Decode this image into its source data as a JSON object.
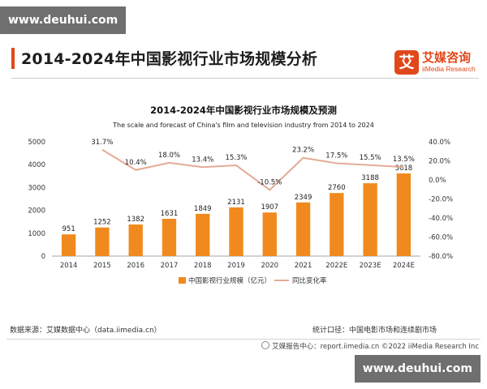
{
  "watermark": {
    "top": "www.deuhui.com",
    "bottom": "www.deuhui.com"
  },
  "header": {
    "title": "2014-2024年中国影视行业市场规模分析",
    "logo_mark": "艾",
    "logo_name": "艾媒咨询",
    "logo_sub": "iiMedia Research"
  },
  "colors": {
    "accent": "#e0481a",
    "bar": "#f08a1e",
    "line": "#e3ab95"
  },
  "chart_data": {
    "type": "bar",
    "title": "2014-2024年中国影视行业市场规模及预测",
    "subtitle": "The scale and forecast of China's film and television industry from 2014 to 2024",
    "categories": [
      "2014",
      "2015",
      "2016",
      "2017",
      "2018",
      "2019",
      "2020",
      "2021",
      "2022E",
      "2023E",
      "2024E"
    ],
    "series": [
      {
        "name": "中国影视行业规模（亿元）",
        "type": "bar",
        "axis": "left",
        "values": [
          951,
          1252,
          1382,
          1631,
          1849,
          2131,
          1907,
          2349,
          2760,
          3188,
          3618
        ]
      },
      {
        "name": "同比变化率",
        "type": "line",
        "axis": "right",
        "values": [
          null,
          31.7,
          10.4,
          18.0,
          13.4,
          15.3,
          -10.5,
          23.2,
          17.5,
          15.5,
          13.5
        ],
        "labels": [
          "",
          "31.7%",
          "10.4%",
          "18.0%",
          "13.4%",
          "15.3%",
          "-10.5%",
          "23.2%",
          "17.5%",
          "15.5%",
          "13.5%"
        ]
      }
    ],
    "ylim": [
      0,
      5000
    ],
    "yticks": [
      "0",
      "1000",
      "2000",
      "3000",
      "4000",
      "5000"
    ],
    "y2lim": [
      -80,
      40
    ],
    "y2ticks": [
      "-80.0%",
      "-60.0%",
      "-40.0%",
      "-20.0%",
      "0.0%",
      "20.0%",
      "40.0%"
    ],
    "legend": "bottom",
    "grid": false
  },
  "footer": {
    "source": "数据来源：艾媒数据中心（data.iimedia.cn）",
    "scope": "统计口径：中国电影市场和连续剧市场",
    "credit": "艾媒报告中心：report.iimedia.cn  ©2022  iiMedia Research  Inc"
  }
}
